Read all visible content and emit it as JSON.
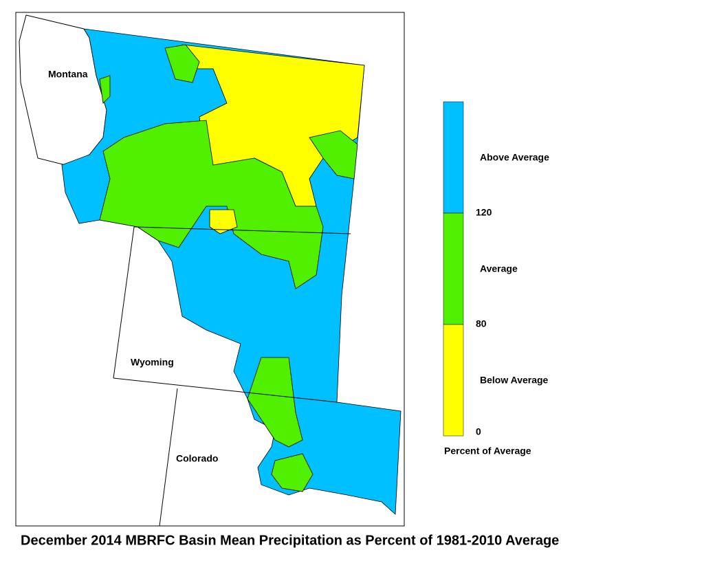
{
  "title": "December 2014 MBRFC Basin Mean Precipitation as Percent of 1981-2010 Average",
  "map": {
    "states": [
      "Montana",
      "Wyoming",
      "Colorado"
    ]
  },
  "legend": {
    "classes": [
      {
        "label": "Above Average",
        "color": "#00c0ff"
      },
      {
        "label": "Average",
        "color": "#50f000"
      },
      {
        "label": "Below Average",
        "color": "#ffff00"
      }
    ],
    "ticks": [
      120,
      80,
      0
    ],
    "caption": "Percent of Average"
  }
}
